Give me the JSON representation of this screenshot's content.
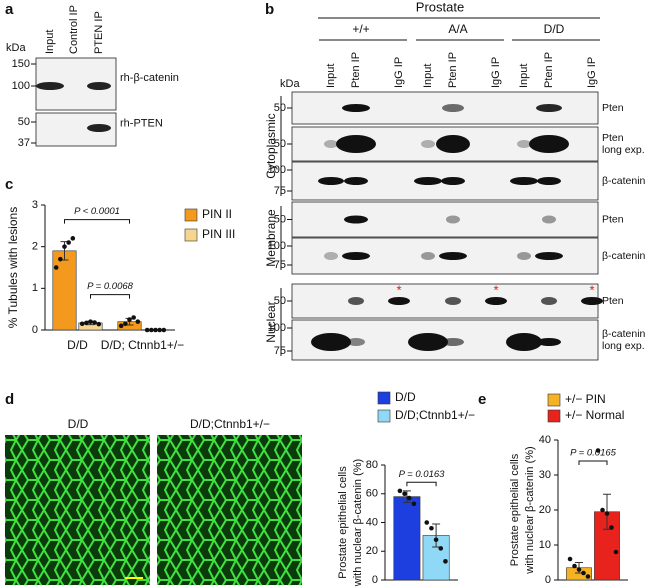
{
  "panels": {
    "a": "a",
    "b": "b",
    "c": "c",
    "d": "d",
    "e": "e"
  },
  "panel_a": {
    "unit": "kDa",
    "lanes": [
      "Input",
      "Control IP",
      "PTEN IP"
    ],
    "markers": [
      "150",
      "100",
      "50",
      "37"
    ],
    "rows": [
      "rh-β-catenin",
      "rh-PTEN"
    ]
  },
  "panel_b": {
    "title": "Prostate",
    "genotypes": [
      "+/+",
      "A/A",
      "D/D"
    ],
    "lanes": [
      "Input",
      "Pten IP",
      "IgG IP"
    ],
    "unit": "kDa",
    "fractions": [
      "Cytoplasmic",
      "Membrane",
      "Nuclear"
    ],
    "rows": [
      {
        "label": [
          "Pten"
        ],
        "markers": [
          "50"
        ]
      },
      {
        "label": [
          "Pten",
          "long exp."
        ],
        "markers": [
          "50"
        ]
      },
      {
        "label": [
          "β-catenin"
        ],
        "markers": [
          "100",
          "75"
        ]
      },
      {
        "label": [
          "Pten"
        ],
        "markers": [
          "50"
        ]
      },
      {
        "label": [
          "β-catenin"
        ],
        "markers": [
          "100",
          "75"
        ]
      },
      {
        "label": [
          "Pten"
        ],
        "markers": [
          "50"
        ]
      },
      {
        "label": [
          "β-catenin",
          "long exp."
        ],
        "markers": [
          "100",
          "75"
        ]
      }
    ],
    "asterisks": [
      "*",
      "*",
      "*"
    ]
  },
  "panel_d": {
    "images": [
      "D/D",
      "D/D;Ctnnb1+/−"
    ]
  },
  "chart_data": [
    {
      "type": "bar",
      "y_label": "% Tubules with lesions",
      "categories": [
        "D/D",
        "D/D; Ctnnb1+/−"
      ],
      "ylim": [
        0,
        3
      ],
      "yticks": [
        0,
        1,
        2,
        3
      ],
      "series": [
        {
          "name": "PIN II",
          "color": "#f39a1e",
          "values": [
            1.9,
            0.2
          ],
          "errors": [
            0.22,
            0.08
          ],
          "points": [
            [
              1.5,
              1.7,
              2.0,
              2.1,
              2.2
            ],
            [
              0.1,
              0.15,
              0.25,
              0.3,
              0.2
            ]
          ]
        },
        {
          "name": "PIN III",
          "color": "#f8d58f",
          "values": [
            0.17,
            0
          ],
          "errors": [
            0.04,
            0
          ],
          "points": [
            [
              0.15,
              0.17,
              0.2,
              0.18,
              0.14
            ],
            [
              0,
              0,
              0,
              0,
              0
            ]
          ]
        }
      ],
      "annotations": [
        "P < 0.0001",
        "P = 0.0068"
      ]
    },
    {
      "type": "bar",
      "y_label": [
        "Prostate epithelial cells",
        "with nuclear β-catenin (%)"
      ],
      "ylim": [
        0,
        80
      ],
      "yticks": [
        0,
        20,
        40,
        60,
        80
      ],
      "series": [
        {
          "name": "D/D",
          "color": "#1d3fe0",
          "values": [
            58
          ],
          "errors": [
            4
          ],
          "points": [
            [
              62,
              60,
              57,
              53
            ]
          ]
        },
        {
          "name": "D/D;Ctnnb1+/−",
          "color": "#8fd8f6",
          "values": [
            31
          ],
          "errors": [
            8
          ],
          "points": [
            [
              40,
              36,
              28,
              22,
              13
            ]
          ]
        }
      ],
      "annotations": [
        "P = 0.0163"
      ]
    },
    {
      "type": "bar",
      "y_label": [
        "Prostate epithelial cells",
        "with nuclear β-catenin (%)"
      ],
      "ylim": [
        0,
        40
      ],
      "yticks": [
        0,
        10,
        20,
        30,
        40
      ],
      "series": [
        {
          "name": "+/− PIN",
          "color": "#f5b225",
          "values": [
            3.5
          ],
          "errors": [
            1.5
          ],
          "points": [
            [
              6,
              4,
              3,
              2,
              1
            ]
          ]
        },
        {
          "name": "+/− Normal",
          "color": "#e8231e",
          "values": [
            19.5
          ],
          "errors": [
            5
          ],
          "points": [
            [
              37,
              20,
              19,
              15,
              8
            ]
          ]
        }
      ],
      "annotations": [
        "P = 0.0165"
      ]
    }
  ]
}
